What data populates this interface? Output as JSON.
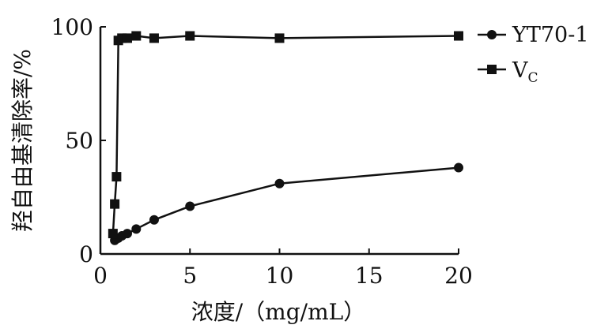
{
  "chart_data": {
    "type": "line",
    "title": "",
    "xlabel": "浓度/（mg/mL）",
    "ylabel": "羟自由基清除率/%",
    "xlim": [
      0,
      20
    ],
    "ylim": [
      0,
      100
    ],
    "x_ticks": [
      "0",
      "5",
      "10",
      "15",
      "20"
    ],
    "y_ticks": [
      "0",
      "50",
      "100"
    ],
    "grid": false,
    "legend_position": "top-right",
    "series": [
      {
        "name": "YT70-1",
        "marker": "circle",
        "color": "#111111",
        "x": [
          0.8,
          1.0,
          1.2,
          1.5,
          2.0,
          3.0,
          5.0,
          10.0,
          20.0
        ],
        "y": [
          6,
          7,
          8,
          9,
          11,
          15,
          21,
          31,
          38
        ]
      },
      {
        "name": "VC",
        "name_main": "V",
        "name_sub": "C",
        "marker": "square",
        "color": "#111111",
        "x": [
          0.7,
          0.8,
          0.9,
          1.0,
          1.2,
          1.5,
          2.0,
          3.0,
          5.0,
          10.0,
          20.0
        ],
        "y": [
          9,
          22,
          34,
          94,
          95,
          95,
          96,
          95,
          96,
          95,
          96
        ]
      }
    ]
  }
}
